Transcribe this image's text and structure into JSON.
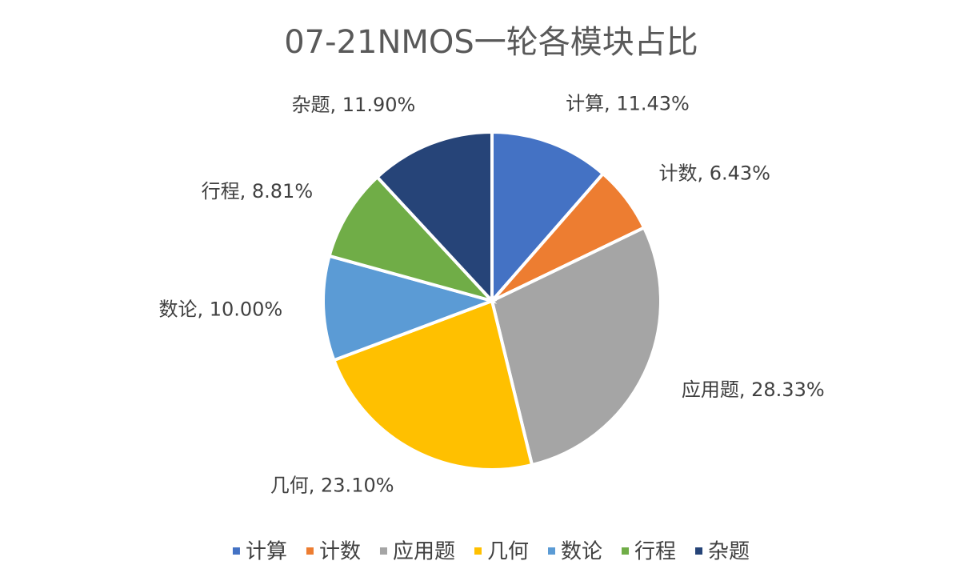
{
  "chart_data": {
    "type": "pie",
    "title": "07-21NMOS一轮各模块占比",
    "categories": [
      "计算",
      "计数",
      "应用题",
      "几何",
      "数论",
      "行程",
      "杂题"
    ],
    "values": [
      11.43,
      6.43,
      28.33,
      23.1,
      10.0,
      8.81,
      11.9
    ],
    "value_labels": [
      "计算, 11.43%",
      "计数, 6.43%",
      "应用题, 28.33%",
      "几何, 23.10%",
      "数论, 10.00%",
      "行程, 8.81%",
      "杂题, 11.90%"
    ],
    "colors": [
      "#4472c4",
      "#ed7d31",
      "#a5a5a5",
      "#ffc000",
      "#5b9bd5",
      "#70ad47",
      "#264478"
    ],
    "legend": "bottom"
  }
}
